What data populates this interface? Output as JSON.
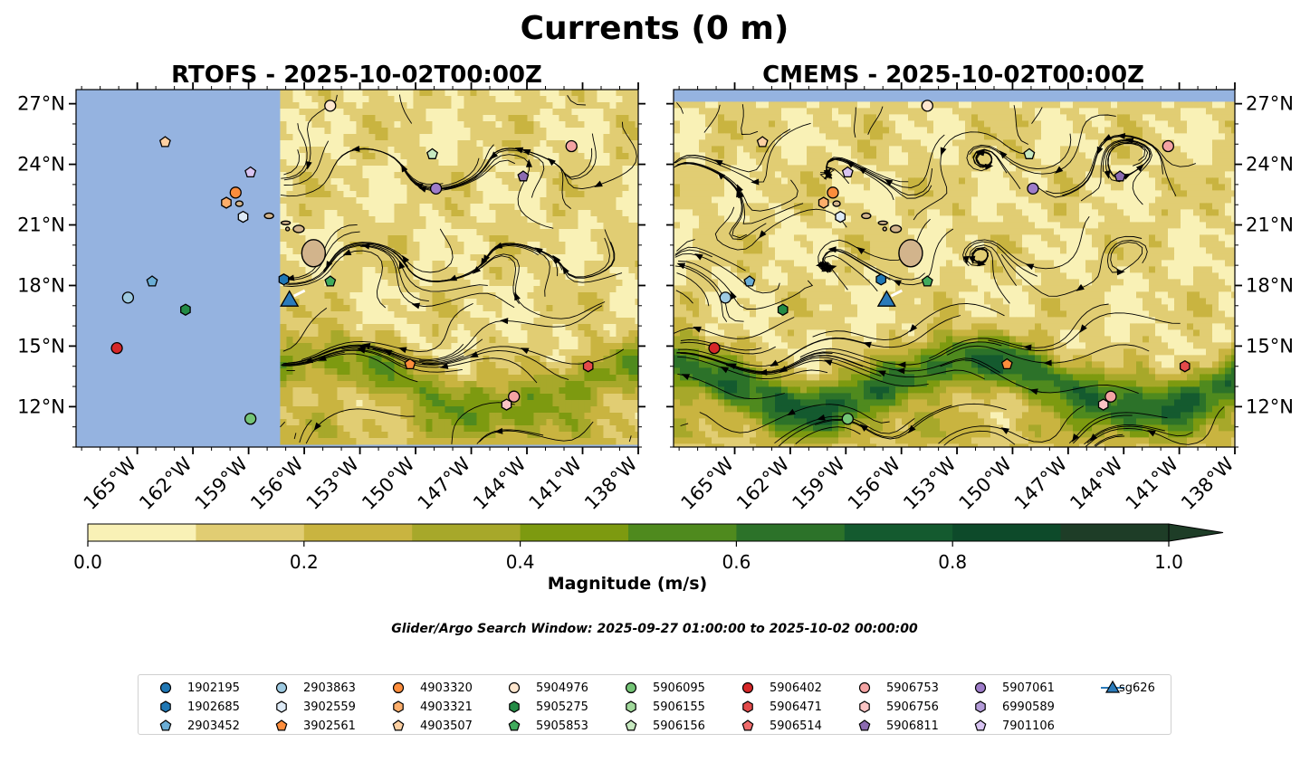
{
  "suptitle": "Currents (0 m)",
  "subtitle": "Glider/Argo Search Window: 2025-09-27 01:00:00 to 2025-10-02 00:00:00",
  "colors": {
    "land_mask": "#95b3e0",
    "land": "#d2b48c",
    "text": "#000000"
  },
  "chart_data": [
    {
      "type": "heatmap",
      "title": "RTOFS - 2025-10-02T00:00Z",
      "xlabel": "",
      "ylabel": "",
      "xlim": [
        -168.3,
        -138
      ],
      "ylim": [
        10,
        27.7
      ],
      "x_ticks": [
        -165,
        -162,
        -159,
        -156,
        -153,
        -150,
        -147,
        -144,
        -141,
        -138
      ],
      "x_tick_labels": [
        "165°W",
        "162°W",
        "159°W",
        "156°W",
        "153°W",
        "150°W",
        "147°W",
        "144°W",
        "141°W",
        "138°W"
      ],
      "y_ticks": [
        12,
        15,
        18,
        21,
        24,
        27
      ],
      "y_tick_labels": [
        "12°N",
        "15°N",
        "18°N",
        "21°N",
        "24°N",
        "27°N"
      ],
      "y_axis_side": "left",
      "data_coverage_lon_min": -157.3
    },
    {
      "type": "heatmap",
      "title": "CMEMS - 2025-10-02T00:00Z",
      "xlabel": "",
      "ylabel": "",
      "xlim": [
        -168.3,
        -138
      ],
      "ylim": [
        10,
        27.7
      ],
      "x_ticks": [
        -165,
        -162,
        -159,
        -156,
        -153,
        -150,
        -147,
        -144,
        -141,
        -138
      ],
      "x_tick_labels": [
        "165°W",
        "162°W",
        "159°W",
        "156°W",
        "153°W",
        "150°W",
        "147°W",
        "144°W",
        "141°W",
        "138°W"
      ],
      "y_ticks": [
        12,
        15,
        18,
        21,
        24,
        27
      ],
      "y_tick_labels": [
        "12°N",
        "15°N",
        "18°N",
        "21°N",
        "24°N",
        "27°N"
      ],
      "y_axis_side": "right",
      "data_coverage_lat_max": 27.1
    }
  ],
  "colorbar": {
    "label": "Magnitude (m/s)",
    "ticks": [
      0.0,
      0.2,
      0.4,
      0.6,
      0.8,
      1.0
    ],
    "tick_labels": [
      "0.0",
      "0.2",
      "0.4",
      "0.6",
      "0.8",
      "1.0"
    ],
    "levels": [
      0.0,
      0.1,
      0.2,
      0.3,
      0.4,
      0.5,
      0.6,
      0.7,
      0.8,
      0.9,
      1.0
    ],
    "colors": [
      "#f9f1b6",
      "#e1cd73",
      "#c9b440",
      "#a7a82a",
      "#7d9a10",
      "#4f8a1e",
      "#2c7229",
      "#145a2f",
      "#0d4a2a",
      "#1e3d27"
    ],
    "extend": "max"
  },
  "floats": [
    {
      "id": "1902195",
      "marker": "circle",
      "color": "#1f77b4",
      "lon": null,
      "lat": null
    },
    {
      "id": "1902685",
      "marker": "hexagon",
      "color": "#1f77b4",
      "lon": -157.1,
      "lat": 18.3
    },
    {
      "id": "2903452",
      "marker": "pentagon",
      "color": "#6baed6",
      "lon": -164.2,
      "lat": 18.2
    },
    {
      "id": "2903863",
      "marker": "circle",
      "color": "#9ecae1",
      "lon": -165.5,
      "lat": 17.4
    },
    {
      "id": "3902559",
      "marker": "hexagon",
      "color": "#deebf7",
      "lon": -159.3,
      "lat": 21.4
    },
    {
      "id": "3902561",
      "marker": "pentagon",
      "color": "#fd8d3c",
      "lon": -150.3,
      "lat": 14.1
    },
    {
      "id": "4903320",
      "marker": "circle",
      "color": "#fd8d3c",
      "lon": -159.7,
      "lat": 22.6
    },
    {
      "id": "4903321",
      "marker": "hexagon",
      "color": "#fdae6b",
      "lon": -160.2,
      "lat": 22.1
    },
    {
      "id": "4903507",
      "marker": "pentagon",
      "color": "#fdd0a2",
      "lon": -163.5,
      "lat": 25.1
    },
    {
      "id": "5904976",
      "marker": "circle",
      "color": "#fee6ce",
      "lon": -154.6,
      "lat": 26.9
    },
    {
      "id": "5905275",
      "marker": "hexagon",
      "color": "#238b45",
      "lon": -162.4,
      "lat": 16.8
    },
    {
      "id": "5905853",
      "marker": "pentagon",
      "color": "#41ab5d",
      "lon": -154.6,
      "lat": 18.2
    },
    {
      "id": "5906095",
      "marker": "circle",
      "color": "#74c476",
      "lon": -158.9,
      "lat": 11.4
    },
    {
      "id": "5906155",
      "marker": "hexagon",
      "color": "#a1d99b",
      "lon": null,
      "lat": null
    },
    {
      "id": "5906156",
      "marker": "pentagon",
      "color": "#c7e9c0",
      "lon": -149.1,
      "lat": 24.5
    },
    {
      "id": "5906402",
      "marker": "circle",
      "color": "#d62728",
      "lon": -166.1,
      "lat": 14.9
    },
    {
      "id": "5906471",
      "marker": "hexagon",
      "color": "#e34a4a",
      "lon": -140.7,
      "lat": 14.0
    },
    {
      "id": "5906514",
      "marker": "pentagon",
      "color": "#f06c6c",
      "lon": null,
      "lat": null
    },
    {
      "id": "5906753",
      "marker": "circle",
      "color": "#f4a3a3",
      "lon": -144.7,
      "lat": 12.5
    },
    {
      "id": "5906756",
      "marker": "hexagon",
      "color": "#fbc4c4",
      "lon": -145.1,
      "lat": 12.1
    },
    {
      "id": "5906811",
      "marker": "pentagon",
      "color": "#8c6bb1",
      "lon": -144.2,
      "lat": 23.4
    },
    {
      "id": "5907061",
      "marker": "circle",
      "color": "#9e7cc9",
      "lon": -148.9,
      "lat": 22.8
    },
    {
      "id": "6990589",
      "marker": "hexagon",
      "color": "#b39bd8",
      "lon": null,
      "lat": null
    },
    {
      "id": "7901106",
      "marker": "pentagon",
      "color": "#d8c4f2",
      "lon": -158.9,
      "lat": 23.6
    },
    {
      "id": "sg626",
      "marker": "triangle",
      "color": "#2b7bba",
      "lon": -156.8,
      "lat": 17.3
    }
  ],
  "extra_markers": [
    {
      "id": "5906753",
      "marker": "circle",
      "color": "#f4a3a3",
      "lon": -141.6,
      "lat": 24.9
    }
  ]
}
